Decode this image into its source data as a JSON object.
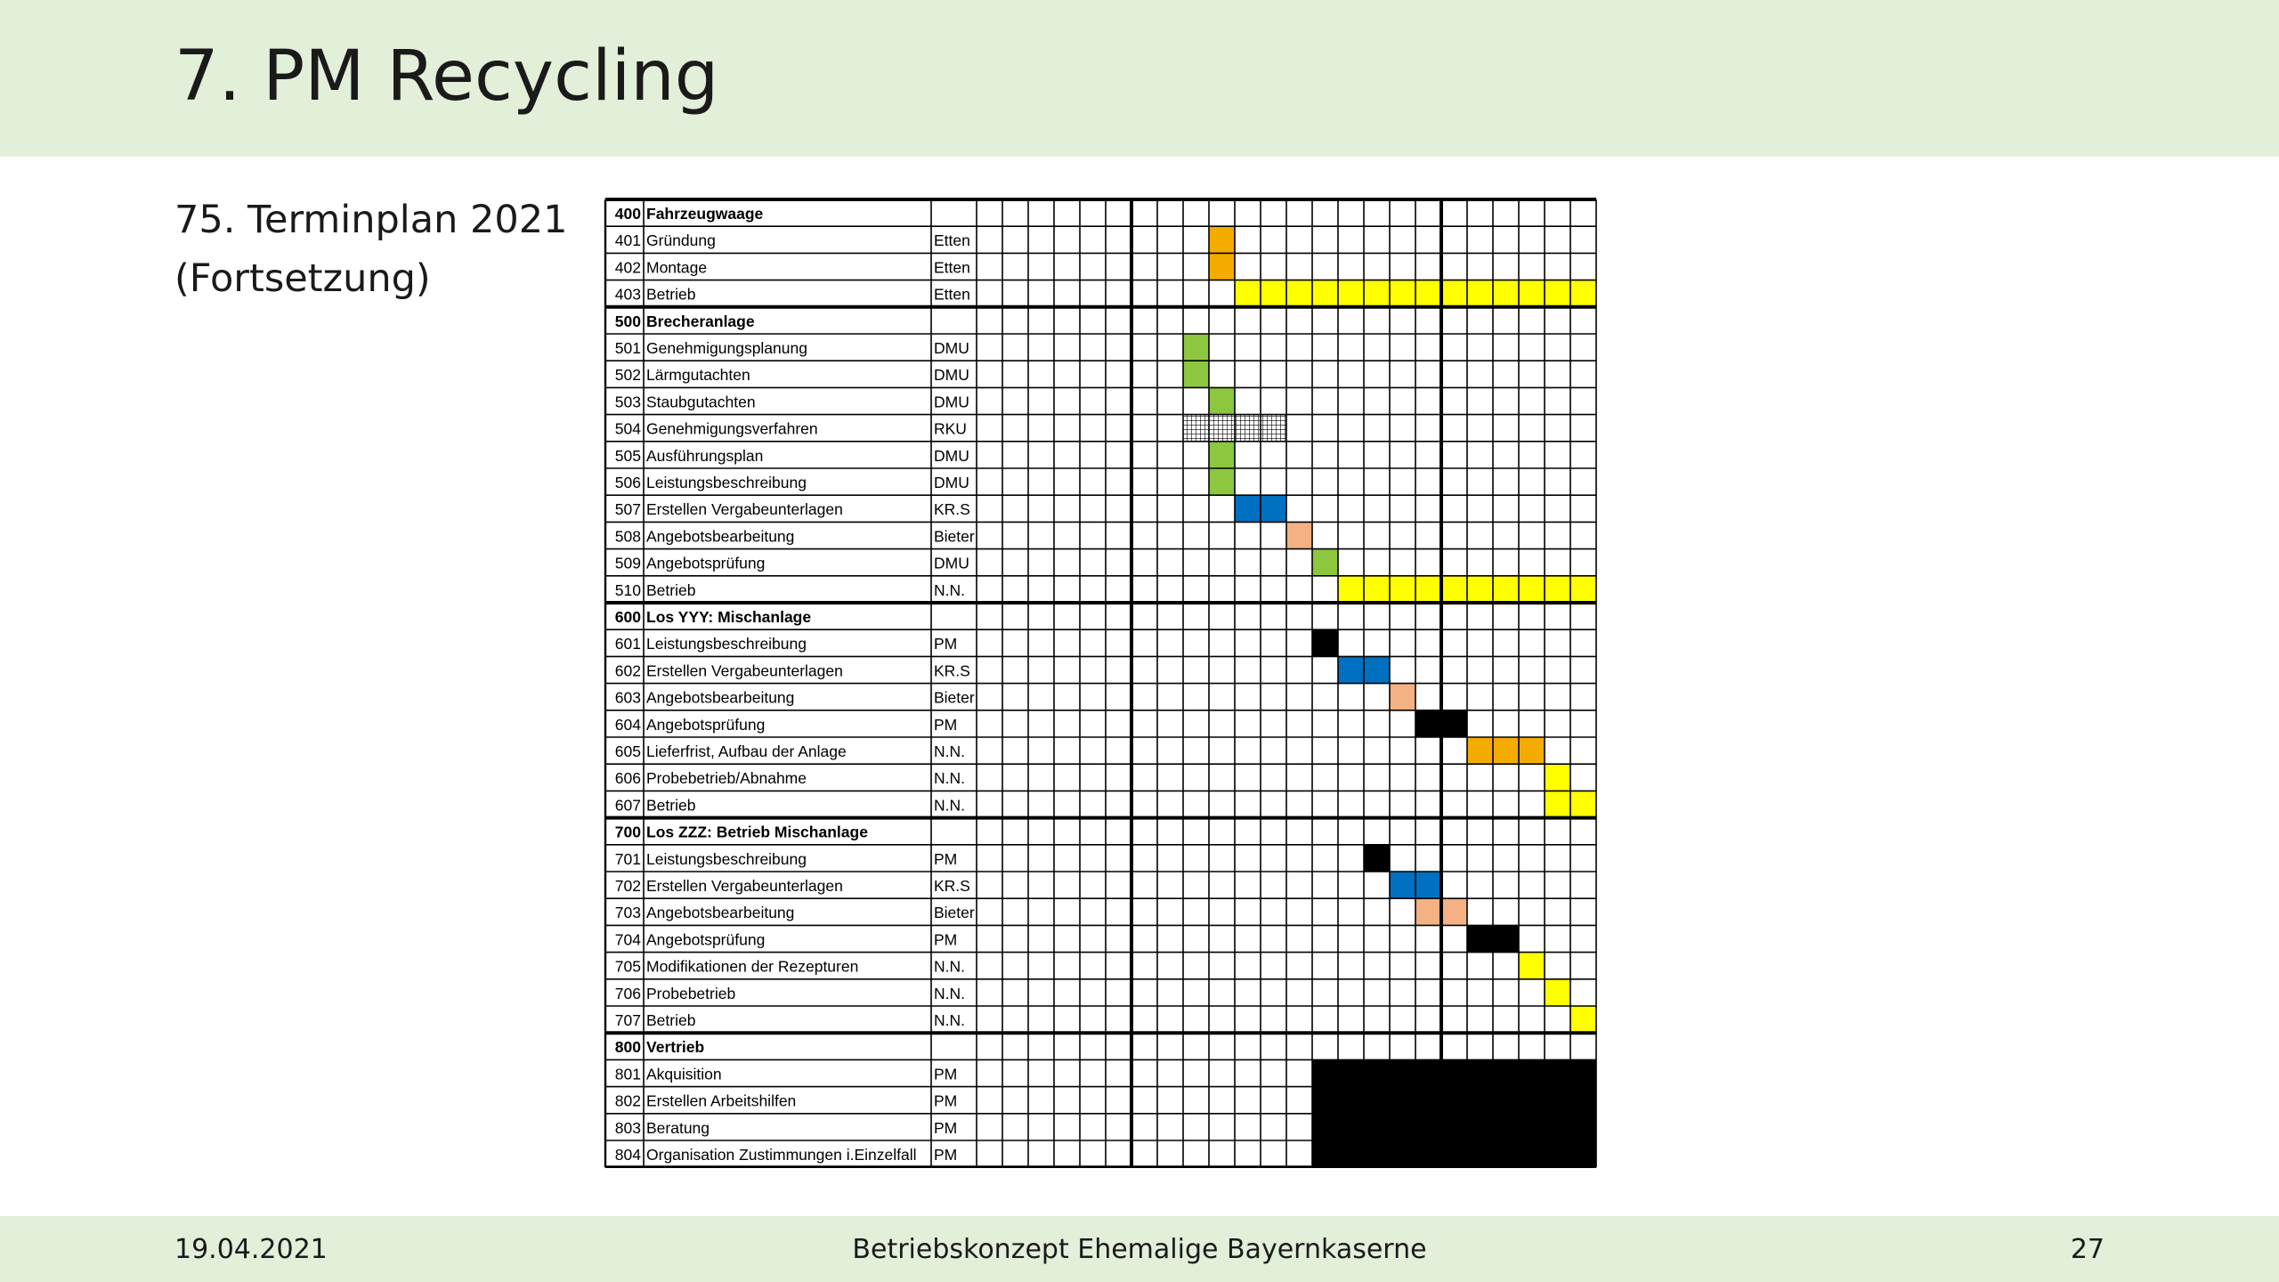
{
  "slide": {
    "title": "7. PM Recycling",
    "subtitle_line1": "75. Terminplan 2021",
    "subtitle_line2": "(Fortsetzung)"
  },
  "footer": {
    "date": "19.04.2021",
    "center": "Betriebskonzept Ehemalige Bayernkaserne",
    "page": "27"
  },
  "colors": {
    "orange": "#f5ac00",
    "yellow": "#ffff00",
    "green": "#8dc63f",
    "blue": "#0070c0",
    "salmon": "#f4b183",
    "black": "#000000",
    "header_bg": "#e2efd9"
  },
  "schedule": {
    "period_columns": 24,
    "rows": [
      {
        "id": "400",
        "name": "Fahrzeugwaage",
        "resp": "",
        "group": true,
        "bars": []
      },
      {
        "id": "401",
        "name": "Gründung",
        "resp": "Etten",
        "group": false,
        "bars": [
          {
            "start": 9,
            "len": 1,
            "color": "orange"
          }
        ]
      },
      {
        "id": "402",
        "name": "Montage",
        "resp": "Etten",
        "group": false,
        "bars": [
          {
            "start": 9,
            "len": 1,
            "color": "orange"
          }
        ]
      },
      {
        "id": "403",
        "name": "Betrieb",
        "resp": "Etten",
        "group": false,
        "bars": [
          {
            "start": 10,
            "len": 14,
            "color": "yellow"
          }
        ]
      },
      {
        "id": "500",
        "name": "Brecheranlage",
        "resp": "",
        "group": true,
        "bars": []
      },
      {
        "id": "501",
        "name": "Genehmigungsplanung",
        "resp": "DMU",
        "group": false,
        "bars": [
          {
            "start": 8,
            "len": 1,
            "color": "green"
          }
        ]
      },
      {
        "id": "502",
        "name": "Lärmgutachten",
        "resp": "DMU",
        "group": false,
        "bars": [
          {
            "start": 8,
            "len": 1,
            "color": "green"
          }
        ]
      },
      {
        "id": "503",
        "name": "Staubgutachten",
        "resp": "DMU",
        "group": false,
        "bars": [
          {
            "start": 9,
            "len": 1,
            "color": "green"
          }
        ]
      },
      {
        "id": "504",
        "name": "Genehmigungsverfahren",
        "resp": "RKU",
        "group": false,
        "bars": [
          {
            "start": 8,
            "len": 4,
            "color": "hatch"
          }
        ]
      },
      {
        "id": "505",
        "name": "Ausführungsplan",
        "resp": "DMU",
        "group": false,
        "bars": [
          {
            "start": 9,
            "len": 1,
            "color": "green"
          }
        ]
      },
      {
        "id": "506",
        "name": "Leistungsbeschreibung",
        "resp": "DMU",
        "group": false,
        "bars": [
          {
            "start": 9,
            "len": 1,
            "color": "green"
          }
        ]
      },
      {
        "id": "507",
        "name": "Erstellen Vergabeunterlagen",
        "resp": "KR.S",
        "group": false,
        "bars": [
          {
            "start": 10,
            "len": 2,
            "color": "blue"
          }
        ]
      },
      {
        "id": "508",
        "name": "Angebotsbearbeitung",
        "resp": "Bieter",
        "group": false,
        "bars": [
          {
            "start": 12,
            "len": 1,
            "color": "salmon"
          }
        ]
      },
      {
        "id": "509",
        "name": "Angebotsprüfung",
        "resp": "DMU",
        "group": false,
        "bars": [
          {
            "start": 13,
            "len": 1,
            "color": "green"
          }
        ]
      },
      {
        "id": "510",
        "name": "Betrieb",
        "resp": "N.N.",
        "group": false,
        "bars": [
          {
            "start": 14,
            "len": 10,
            "color": "yellow"
          }
        ]
      },
      {
        "id": "600",
        "name": "Los YYY: Mischanlage",
        "resp": "",
        "group": true,
        "bars": []
      },
      {
        "id": "601",
        "name": "Leistungsbeschreibung",
        "resp": "PM",
        "group": false,
        "bars": [
          {
            "start": 13,
            "len": 1,
            "color": "black"
          }
        ]
      },
      {
        "id": "602",
        "name": "Erstellen Vergabeunterlagen",
        "resp": "KR.S",
        "group": false,
        "bars": [
          {
            "start": 14,
            "len": 2,
            "color": "blue"
          }
        ]
      },
      {
        "id": "603",
        "name": "Angebotsbearbeitung",
        "resp": "Bieter",
        "group": false,
        "bars": [
          {
            "start": 16,
            "len": 1,
            "color": "salmon"
          }
        ]
      },
      {
        "id": "604",
        "name": "Angebotsprüfung",
        "resp": "PM",
        "group": false,
        "bars": [
          {
            "start": 17,
            "len": 2,
            "color": "black"
          }
        ]
      },
      {
        "id": "605",
        "name": "Lieferfrist, Aufbau der Anlage",
        "resp": "N.N.",
        "group": false,
        "bars": [
          {
            "start": 19,
            "len": 3,
            "color": "orange"
          }
        ]
      },
      {
        "id": "606",
        "name": "Probebetrieb/Abnahme",
        "resp": "N.N.",
        "group": false,
        "bars": [
          {
            "start": 22,
            "len": 1,
            "color": "yellow"
          }
        ]
      },
      {
        "id": "607",
        "name": "Betrieb",
        "resp": "N.N.",
        "group": false,
        "bars": [
          {
            "start": 22,
            "len": 2,
            "color": "yellow"
          }
        ]
      },
      {
        "id": "700",
        "name": "Los ZZZ: Betrieb Mischanlage",
        "resp": "",
        "group": true,
        "bars": []
      },
      {
        "id": "701",
        "name": "Leistungsbeschreibung",
        "resp": "PM",
        "group": false,
        "bars": [
          {
            "start": 15,
            "len": 1,
            "color": "black"
          }
        ]
      },
      {
        "id": "702",
        "name": "Erstellen Vergabeunterlagen",
        "resp": "KR.S",
        "group": false,
        "bars": [
          {
            "start": 16,
            "len": 2,
            "color": "blue"
          }
        ]
      },
      {
        "id": "703",
        "name": "Angebotsbearbeitung",
        "resp": "Bieter",
        "group": false,
        "bars": [
          {
            "start": 17,
            "len": 2,
            "color": "salmon"
          }
        ]
      },
      {
        "id": "704",
        "name": "Angebotsprüfung",
        "resp": "PM",
        "group": false,
        "bars": [
          {
            "start": 19,
            "len": 2,
            "color": "black"
          }
        ]
      },
      {
        "id": "705",
        "name": "Modifikationen der Rezepturen",
        "resp": "N.N.",
        "group": false,
        "bars": [
          {
            "start": 21,
            "len": 1,
            "color": "yellow"
          }
        ]
      },
      {
        "id": "706",
        "name": "Probebetrieb",
        "resp": "N.N.",
        "group": false,
        "bars": [
          {
            "start": 22,
            "len": 1,
            "color": "yellow"
          }
        ]
      },
      {
        "id": "707",
        "name": "Betrieb",
        "resp": "N.N.",
        "group": false,
        "bars": [
          {
            "start": 23,
            "len": 1,
            "color": "yellow"
          }
        ]
      },
      {
        "id": "800",
        "name": "Vertrieb",
        "resp": "",
        "group": true,
        "bars": []
      },
      {
        "id": "801",
        "name": "Akquisition",
        "resp": "PM",
        "group": false,
        "bars": [
          {
            "start": 13,
            "len": 11,
            "color": "black"
          }
        ]
      },
      {
        "id": "802",
        "name": "Erstellen Arbeitshilfen",
        "resp": "PM",
        "group": false,
        "bars": [
          {
            "start": 13,
            "len": 11,
            "color": "black"
          }
        ]
      },
      {
        "id": "803",
        "name": "Beratung",
        "resp": "PM",
        "group": false,
        "bars": [
          {
            "start": 13,
            "len": 11,
            "color": "black"
          }
        ]
      },
      {
        "id": "804",
        "name": "Organisation Zustimmungen i.Einzelfall",
        "resp": "PM",
        "group": false,
        "bars": [
          {
            "start": 13,
            "len": 11,
            "color": "black"
          }
        ]
      }
    ]
  }
}
